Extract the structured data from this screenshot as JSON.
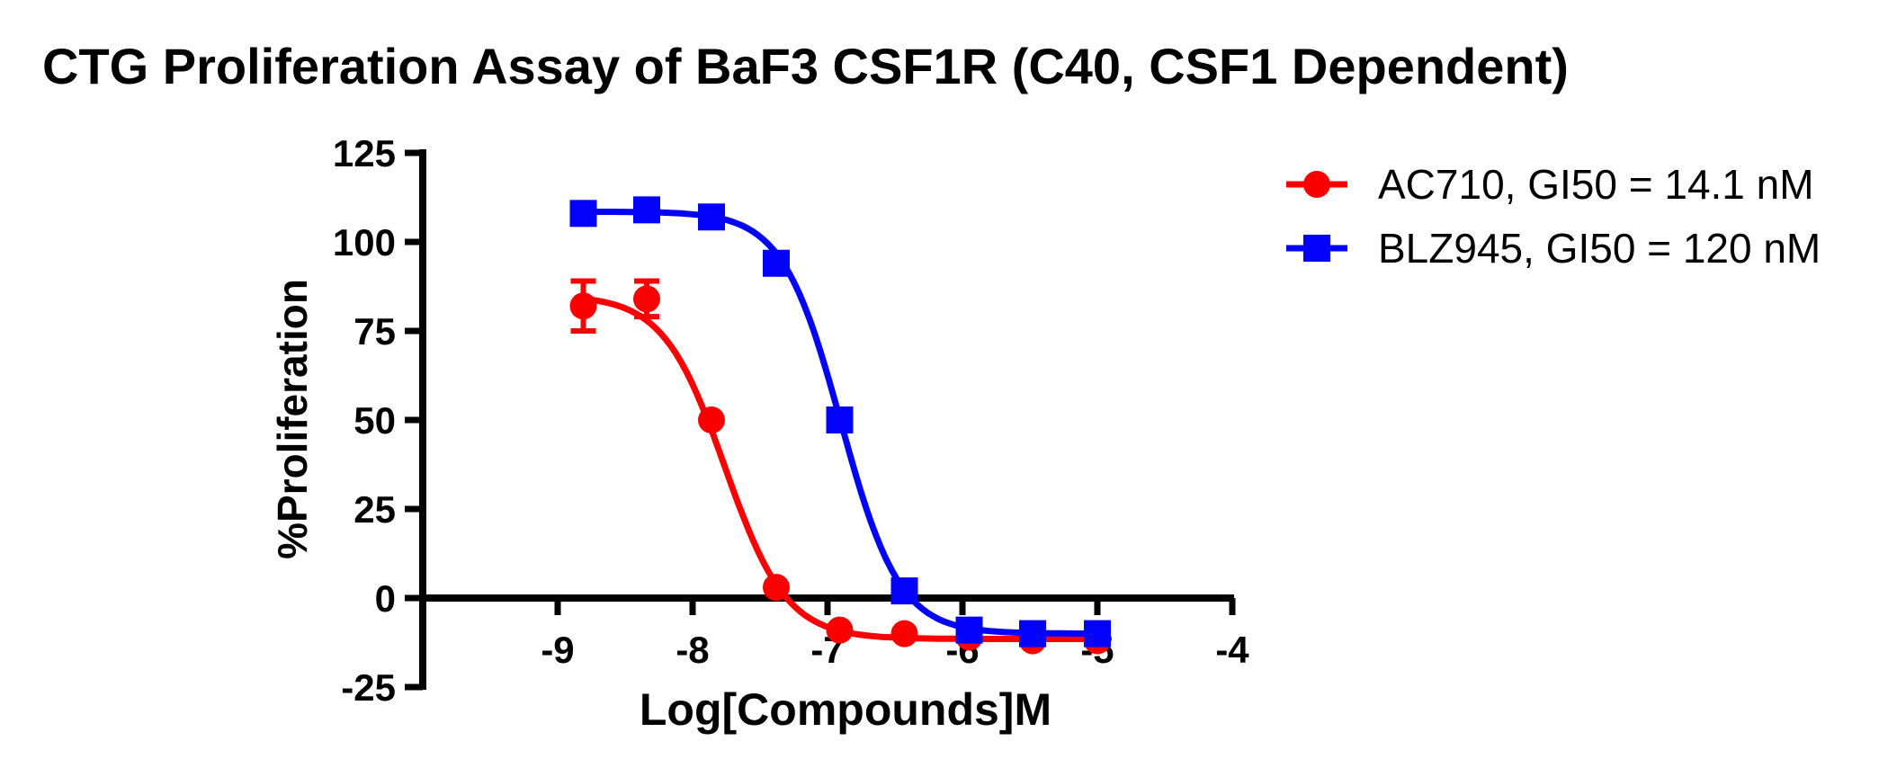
{
  "chart_data": {
    "type": "line",
    "title": "CTG Proliferation Assay of BaF3 CSF1R (C40, CSF1 Dependent)",
    "xlabel": "Log[Compounds]M",
    "ylabel": "%Proliferation",
    "xlim": [
      -10.02,
      -4
    ],
    "ylim": [
      -25,
      125
    ],
    "xticks": [
      -9,
      -8,
      -7,
      -6,
      -5,
      -4
    ],
    "yticks": [
      125,
      100,
      75,
      50,
      25,
      0,
      -25
    ],
    "grid": false,
    "legend_position": "right",
    "axis_color": "#000000",
    "x": [
      -8.81,
      -8.34,
      -7.86,
      -7.38,
      -6.91,
      -6.43,
      -5.95,
      -5.48,
      -5.0
    ],
    "series": [
      {
        "name": "AC710, GI50 = 14.1 nM",
        "compound": "AC710",
        "gi50": "14.1 nM",
        "color": "#FA0000",
        "marker": "circle",
        "values": [
          82,
          84,
          50,
          3,
          -9,
          -10,
          -11,
          -12,
          -12
        ],
        "error": [
          7,
          5,
          0,
          0,
          0,
          0,
          0,
          0,
          0
        ],
        "fit": {
          "top": 85,
          "bottom": -11.5,
          "logec50": -7.76,
          "hill": 1.9
        }
      },
      {
        "name": "BLZ945, GI50 = 120 nM",
        "compound": "BLZ945",
        "gi50": "120 nM",
        "color": "#0202FA",
        "marker": "square",
        "values": [
          108,
          109,
          107,
          94,
          50,
          2,
          -9,
          -10,
          -10
        ],
        "error": [
          0,
          0,
          0,
          0,
          0,
          0,
          0,
          0,
          0
        ],
        "fit": {
          "top": 108.5,
          "bottom": -10,
          "logec50": -6.9,
          "hill": 2.0
        }
      }
    ]
  }
}
